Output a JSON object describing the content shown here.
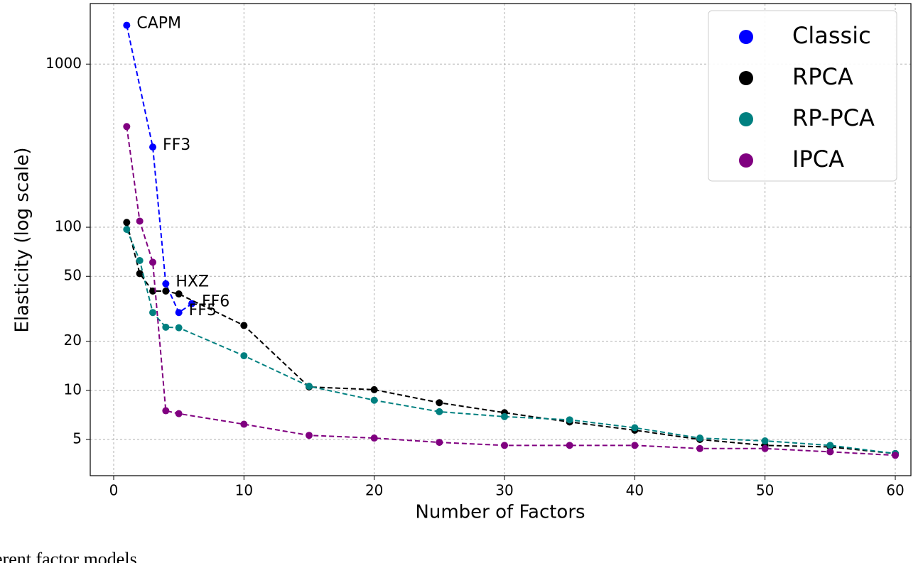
{
  "chart_data": {
    "type": "line",
    "xlabel": "Number of Factors",
    "ylabel": "Elasticity (log scale)",
    "caption": "erent factor models",
    "xlim": [
      -1.8,
      61.2
    ],
    "ylim": [
      3,
      2350
    ],
    "log_y": true,
    "grid": true,
    "legend": "upper right",
    "xticks": [
      0,
      10,
      20,
      30,
      40,
      50,
      60
    ],
    "yticks": [
      5,
      10,
      20,
      50,
      100,
      1000
    ],
    "series": [
      {
        "name": "Classic",
        "color": "#0000ff",
        "x": [
          1,
          3,
          4,
          5,
          6
        ],
        "values": [
          1730,
          310,
          45,
          30,
          34
        ],
        "point_labels": [
          "CAPM",
          "FF3",
          "HXZ",
          "FF5",
          "FF6"
        ]
      },
      {
        "name": "RPCA",
        "color": "#000000",
        "x": [
          1,
          2,
          3,
          4,
          5,
          10,
          15,
          20,
          25,
          30,
          35,
          40,
          45,
          50,
          55,
          60
        ],
        "values": [
          107,
          52,
          40.6,
          40.6,
          39,
          25,
          10.5,
          10.1,
          8.4,
          7.3,
          6.4,
          5.7,
          5.0,
          4.6,
          4.5,
          4.1
        ]
      },
      {
        "name": "RP-PCA",
        "color": "#008080",
        "x": [
          1,
          2,
          3,
          4,
          5,
          10,
          15,
          20,
          25,
          30,
          35,
          40,
          45,
          50,
          55,
          60
        ],
        "values": [
          97,
          62.5,
          30,
          24.4,
          24.2,
          16.3,
          10.6,
          8.7,
          7.4,
          6.9,
          6.6,
          5.9,
          5.1,
          4.9,
          4.6,
          4.1
        ]
      },
      {
        "name": "IPCA",
        "color": "#800080",
        "x": [
          1,
          2,
          3,
          4,
          5,
          10,
          15,
          20,
          25,
          30,
          35,
          40,
          45,
          50,
          55,
          60
        ],
        "values": [
          414,
          109,
          61,
          7.5,
          7.2,
          6.2,
          5.3,
          5.1,
          4.8,
          4.6,
          4.6,
          4.6,
          4.4,
          4.4,
          4.2,
          4.0
        ]
      }
    ]
  }
}
